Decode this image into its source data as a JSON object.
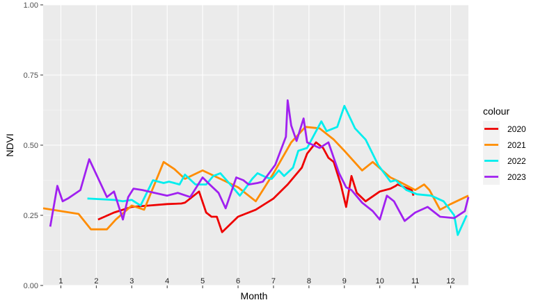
{
  "chart_data": {
    "type": "line",
    "xlabel": "Month",
    "ylabel": "NDVI",
    "xlim": [
      0.5,
      12.5
    ],
    "ylim": [
      0,
      1
    ],
    "x_tick_labels": [
      "1",
      "2",
      "3",
      "4",
      "5",
      "6",
      "7",
      "8",
      "9",
      "10",
      "11",
      "12"
    ],
    "y_ticks": [
      0,
      0.25,
      0.5,
      0.75,
      1
    ],
    "y_tick_labels": [
      "0.00",
      "0.25",
      "0.50",
      "0.75",
      "1.00"
    ],
    "grid": true,
    "legend": {
      "title": "colour",
      "position": "right"
    },
    "series": [
      {
        "name": "2020",
        "color": "#ee0000",
        "x": [
          2.05,
          2.5,
          3.0,
          3.5,
          4.0,
          4.4,
          4.5,
          4.9,
          5.1,
          5.25,
          5.4,
          5.55,
          6.0,
          6.5,
          7.0,
          7.4,
          7.8,
          7.95,
          8.2,
          8.4,
          8.55,
          8.7,
          8.9,
          9.05,
          9.2,
          9.35,
          9.6,
          10.0,
          10.3,
          10.45,
          10.5,
          10.9,
          10.95
        ],
        "y": [
          0.235,
          0.26,
          0.28,
          0.285,
          0.29,
          0.292,
          0.295,
          0.335,
          0.26,
          0.245,
          0.245,
          0.19,
          0.245,
          0.27,
          0.31,
          0.36,
          0.42,
          0.47,
          0.51,
          0.49,
          0.455,
          0.44,
          0.36,
          0.28,
          0.39,
          0.33,
          0.3,
          0.335,
          0.345,
          0.355,
          0.36,
          0.34,
          0.32
        ]
      },
      {
        "name": "2021",
        "color": "#ff8c00",
        "x": [
          0.5,
          1.5,
          1.85,
          2.3,
          2.55,
          3.0,
          3.35,
          3.9,
          4.2,
          4.5,
          5.0,
          5.5,
          6.0,
          6.5,
          7.0,
          7.5,
          7.9,
          8.3,
          8.7,
          9.0,
          9.5,
          9.8,
          10.3,
          10.55,
          11.0,
          11.25,
          11.4,
          11.7,
          12.0,
          12.5
        ],
        "y": [
          0.275,
          0.255,
          0.2,
          0.2,
          0.235,
          0.285,
          0.27,
          0.44,
          0.415,
          0.38,
          0.41,
          0.38,
          0.35,
          0.3,
          0.4,
          0.51,
          0.565,
          0.56,
          0.52,
          0.48,
          0.41,
          0.44,
          0.385,
          0.37,
          0.34,
          0.36,
          0.34,
          0.27,
          0.29,
          0.32
        ]
      },
      {
        "name": "2022",
        "color": "#00eeee",
        "x": [
          1.75,
          2.5,
          2.75,
          3.0,
          3.25,
          3.6,
          3.75,
          3.9,
          4.05,
          4.2,
          4.35,
          4.5,
          4.8,
          5.1,
          5.3,
          5.5,
          5.85,
          6.05,
          6.2,
          6.4,
          6.55,
          6.8,
          6.95,
          7.15,
          7.3,
          7.55,
          7.7,
          7.95,
          8.35,
          8.5,
          8.8,
          9.0,
          9.3,
          9.6,
          9.95,
          10.3,
          10.45,
          10.75,
          11.05,
          11.45,
          11.8,
          12.1,
          12.2,
          12.45
        ],
        "y": [
          0.31,
          0.305,
          0.3,
          0.305,
          0.285,
          0.375,
          0.37,
          0.365,
          0.37,
          0.365,
          0.36,
          0.395,
          0.36,
          0.36,
          0.39,
          0.4,
          0.35,
          0.32,
          0.345,
          0.38,
          0.4,
          0.385,
          0.38,
          0.41,
          0.39,
          0.42,
          0.48,
          0.49,
          0.585,
          0.55,
          0.565,
          0.64,
          0.56,
          0.52,
          0.43,
          0.37,
          0.375,
          0.34,
          0.325,
          0.32,
          0.3,
          0.25,
          0.18,
          0.25
        ]
      },
      {
        "name": "2023",
        "color": "#a020f0",
        "x": [
          0.7,
          0.9,
          1.05,
          1.2,
          1.55,
          1.8,
          2.3,
          2.5,
          2.75,
          2.9,
          3.05,
          3.3,
          3.65,
          4.0,
          4.3,
          4.65,
          5.0,
          5.2,
          5.45,
          5.65,
          5.95,
          6.15,
          6.3,
          6.55,
          6.7,
          7.05,
          7.2,
          7.35,
          7.4,
          7.5,
          7.65,
          7.85,
          7.95,
          8.3,
          8.55,
          8.7,
          8.85,
          9.05,
          9.2,
          9.5,
          9.8,
          10.0,
          10.2,
          10.4,
          10.55,
          10.7,
          11.0,
          11.35,
          11.7,
          12.1,
          12.4,
          12.5
        ],
        "y": [
          0.21,
          0.355,
          0.3,
          0.31,
          0.34,
          0.45,
          0.315,
          0.335,
          0.235,
          0.315,
          0.345,
          0.34,
          0.33,
          0.32,
          0.33,
          0.315,
          0.385,
          0.36,
          0.33,
          0.275,
          0.385,
          0.375,
          0.36,
          0.365,
          0.37,
          0.43,
          0.48,
          0.53,
          0.66,
          0.57,
          0.515,
          0.595,
          0.51,
          0.49,
          0.51,
          0.455,
          0.4,
          0.35,
          0.34,
          0.295,
          0.265,
          0.235,
          0.32,
          0.3,
          0.265,
          0.23,
          0.26,
          0.28,
          0.245,
          0.24,
          0.265,
          0.315
        ]
      }
    ]
  }
}
